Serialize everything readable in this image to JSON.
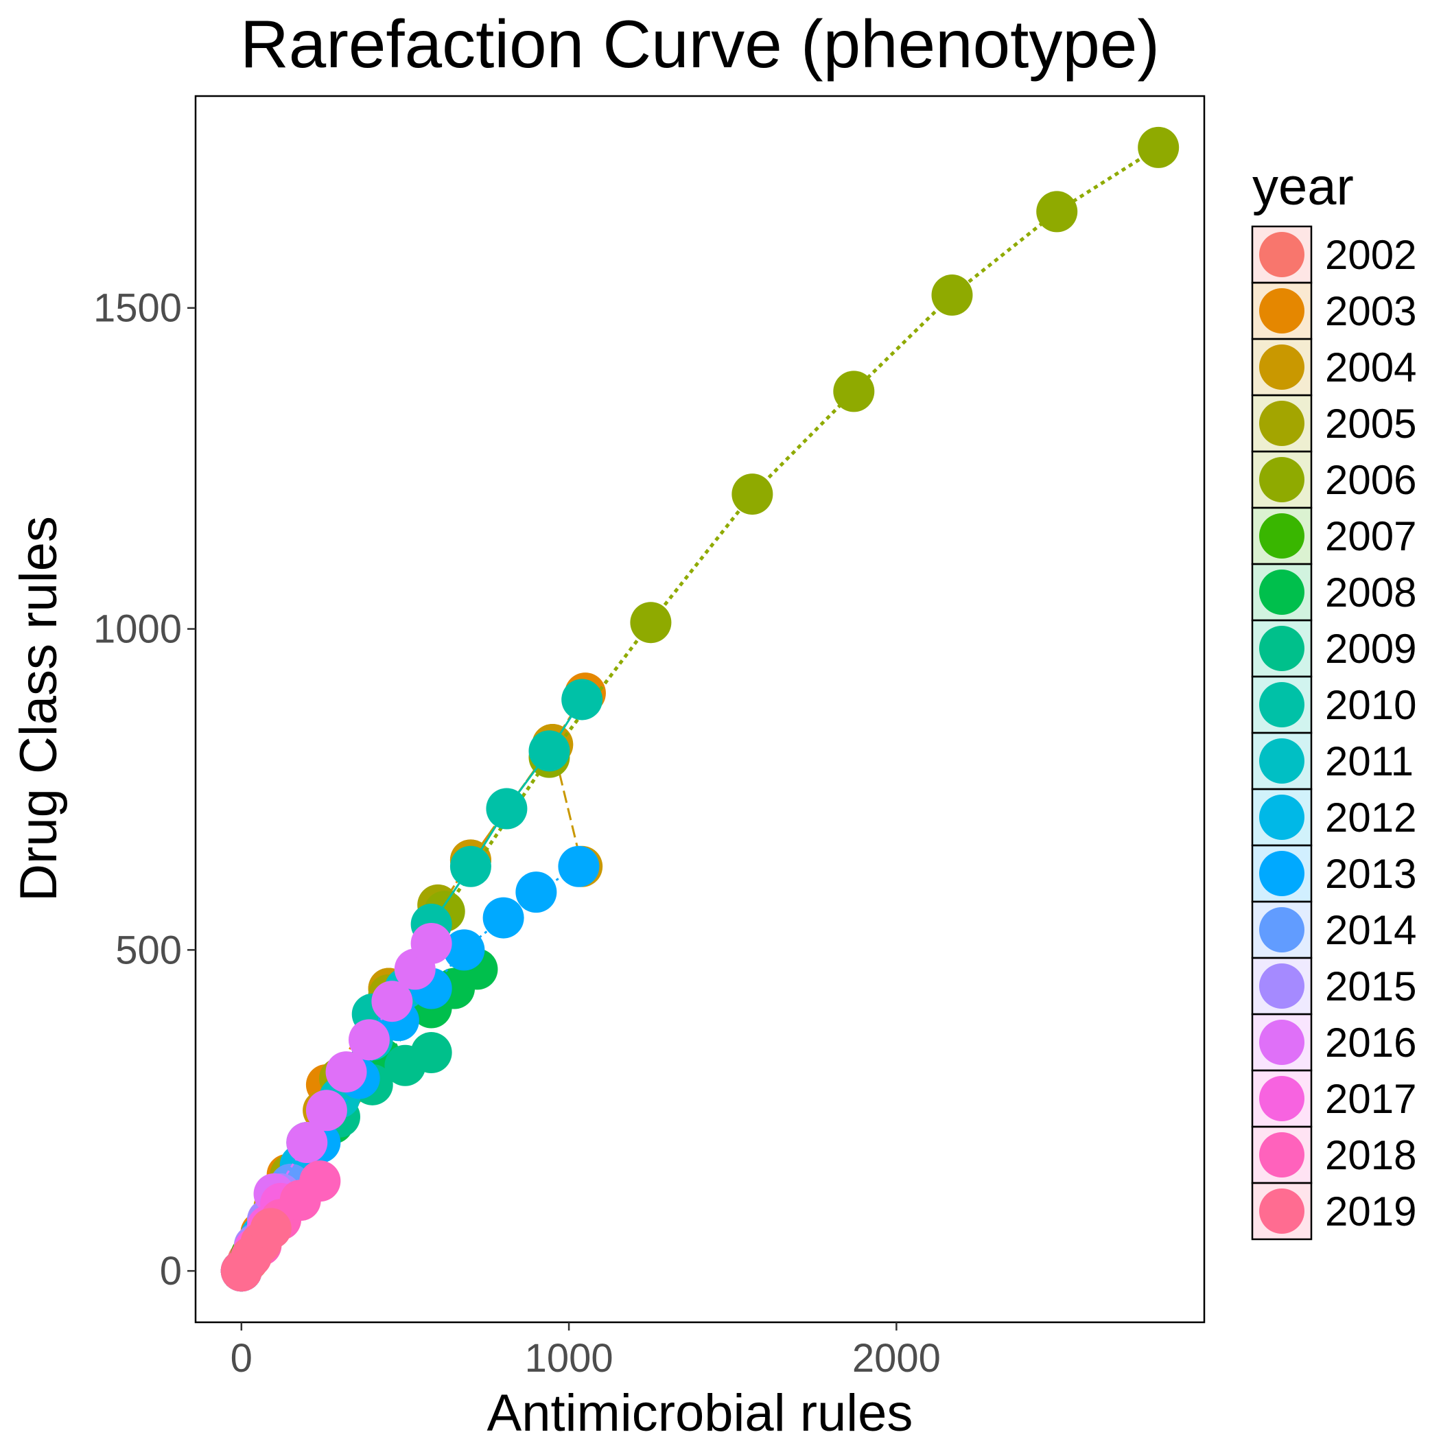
{
  "chart_data": {
    "type": "scatter",
    "title": "Rarefaction Curve (phenotype)",
    "xlabel": "Antimicrobial rules",
    "ylabel": "Drug Class rules",
    "xlim": [
      -140,
      2940
    ],
    "ylim": [
      -80,
      1830
    ],
    "x_ticks": [
      0,
      1000,
      2000
    ],
    "y_ticks": [
      0,
      500,
      1000,
      1500
    ],
    "grid": false,
    "legend": {
      "title": "year",
      "placement": "right"
    },
    "series": [
      {
        "name": "2002",
        "color": "#F8766D",
        "x": [
          0,
          20,
          40,
          60
        ],
        "y": [
          0,
          16,
          32,
          48
        ]
      },
      {
        "name": "2003",
        "color": "#E58700",
        "x": [
          0,
          60,
          140,
          260,
          450,
          700,
          950,
          1050
        ],
        "y": [
          0,
          60,
          150,
          290,
          440,
          640,
          820,
          900
        ]
      },
      {
        "name": "2004",
        "color": "#C99800",
        "x": [
          0,
          100,
          250,
          450,
          700,
          950,
          1040
        ],
        "y": [
          0,
          100,
          250,
          440,
          640,
          820,
          630
        ]
      },
      {
        "name": "2005",
        "color": "#A3A500",
        "x": [
          0,
          150,
          300,
          450,
          600
        ],
        "y": [
          0,
          150,
          300,
          430,
          570
        ]
      },
      {
        "name": "2006",
        "color": "#8FAA00",
        "x": [
          0,
          310,
          620,
          940,
          1250,
          1560,
          1870,
          2170,
          2490,
          2800
        ],
        "y": [
          0,
          280,
          560,
          800,
          1010,
          1210,
          1370,
          1520,
          1650,
          1750
        ]
      },
      {
        "name": "2007",
        "color": "#39B600",
        "x": [
          0,
          30,
          60,
          90
        ],
        "y": [
          0,
          25,
          50,
          75
        ]
      },
      {
        "name": "2008",
        "color": "#00BF4C",
        "x": [
          0,
          140,
          280,
          430,
          580,
          650,
          720
        ],
        "y": [
          0,
          110,
          230,
          330,
          410,
          440,
          470
        ]
      },
      {
        "name": "2009",
        "color": "#00C08B",
        "x": [
          0,
          100,
          200,
          300,
          400,
          500,
          580
        ],
        "y": [
          0,
          80,
          160,
          240,
          290,
          320,
          340
        ]
      },
      {
        "name": "2010",
        "color": "#00C1A7",
        "x": [
          0,
          200,
          400,
          580,
          700,
          810,
          940,
          1040
        ],
        "y": [
          0,
          200,
          400,
          540,
          630,
          720,
          810,
          890
        ]
      },
      {
        "name": "2011",
        "color": "#00BFC4",
        "x": [
          0,
          100,
          200,
          300,
          400,
          500
        ],
        "y": [
          0,
          90,
          180,
          270,
          360,
          440
        ]
      },
      {
        "name": "2012",
        "color": "#00B8E7",
        "x": [
          0,
          60,
          120,
          180
        ],
        "y": [
          0,
          55,
          110,
          165
        ]
      },
      {
        "name": "2013",
        "color": "#00A9FF",
        "x": [
          0,
          120,
          240,
          360,
          480,
          580,
          680,
          800,
          900,
          1030
        ],
        "y": [
          0,
          100,
          200,
          300,
          390,
          440,
          500,
          550,
          590,
          630
        ]
      },
      {
        "name": "2014",
        "color": "#619CFF",
        "x": [
          0,
          50,
          100,
          150
        ],
        "y": [
          0,
          45,
          90,
          135
        ]
      },
      {
        "name": "2015",
        "color": "#A58AFF",
        "x": [
          0,
          40,
          80,
          120
        ],
        "y": [
          0,
          40,
          80,
          120
        ]
      },
      {
        "name": "2016",
        "color": "#DF70F8",
        "x": [
          0,
          100,
          200,
          260,
          320,
          390,
          460,
          530,
          580
        ],
        "y": [
          0,
          120,
          200,
          250,
          310,
          360,
          420,
          470,
          510
        ]
      },
      {
        "name": "2017",
        "color": "#F763E0",
        "x": [
          0,
          40,
          80,
          120
        ],
        "y": [
          0,
          35,
          70,
          105
        ]
      },
      {
        "name": "2018",
        "color": "#FF62BC",
        "x": [
          0,
          60,
          120,
          180,
          240
        ],
        "y": [
          0,
          40,
          80,
          110,
          140
        ]
      },
      {
        "name": "2019",
        "color": "#FF6C91",
        "x": [
          0,
          30,
          60,
          90
        ],
        "y": [
          0,
          22,
          44,
          66
        ]
      }
    ]
  }
}
